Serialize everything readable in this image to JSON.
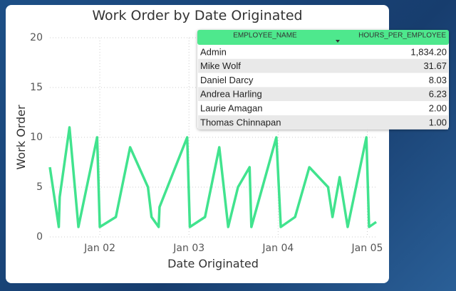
{
  "chart_data": {
    "type": "line",
    "title": "Work Order by Date Originated",
    "x_label": "Date Originated",
    "y_label": "Work Order",
    "x": [
      1.44,
      1.54,
      1.55,
      1.66,
      1.76,
      1.97,
      2.0,
      2.18,
      2.34,
      2.54,
      2.58,
      2.66,
      2.67,
      2.98,
      3.01,
      3.18,
      3.34,
      3.44,
      3.55,
      3.68,
      3.7,
      3.98,
      4.03,
      4.19,
      4.35,
      4.56,
      4.61,
      4.69,
      4.78,
      4.99,
      5.02,
      5.1
    ],
    "values": [
      7,
      1,
      4,
      11,
      1,
      10,
      1,
      2,
      9,
      5,
      2,
      1,
      3,
      10,
      1,
      2,
      9,
      1,
      5,
      7,
      1,
      10,
      1,
      2,
      7,
      5,
      2,
      6,
      1,
      10,
      1,
      1.5
    ],
    "color": "#41e38e",
    "xlim": [
      1.44,
      5.1
    ],
    "xticks": [
      {
        "value": 2,
        "label": "Jan 02"
      },
      {
        "value": 3,
        "label": "Jan 03"
      },
      {
        "value": 4,
        "label": "Jan 04"
      },
      {
        "value": 5,
        "label": "Jan 05"
      }
    ],
    "ylim": [
      0,
      20
    ],
    "yticks": [
      0,
      5,
      10,
      15,
      20
    ],
    "grid": true
  },
  "table": {
    "columns": [
      "EMPLOYEE_NAME",
      "HOURS_PER_EMPLOYEE"
    ],
    "rows": [
      [
        "Admin",
        "1,834.20"
      ],
      [
        "Mike Wolf",
        "31.67"
      ],
      [
        "Daniel Darcy",
        "8.03"
      ],
      [
        "Andrea Harling",
        "6.23"
      ],
      [
        "Laurie Amagan",
        "2.00"
      ],
      [
        "Thomas Chinnapan",
        "1.00"
      ]
    ]
  }
}
